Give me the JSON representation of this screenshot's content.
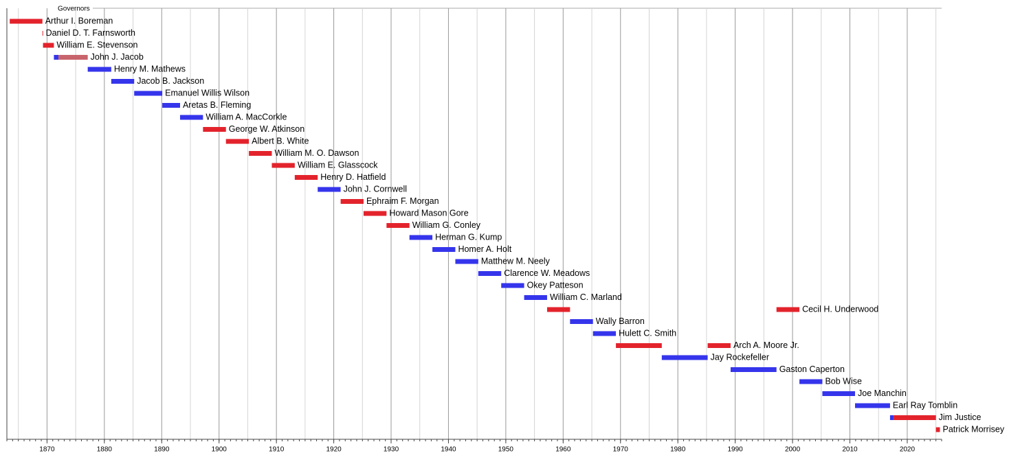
{
  "chart_data": {
    "type": "timeline",
    "title": "Governors",
    "xlim": [
      1863,
      2026
    ],
    "xticks": [
      1870,
      1880,
      1890,
      1900,
      1910,
      1920,
      1930,
      1940,
      1950,
      1960,
      1970,
      1980,
      1990,
      2000,
      2010,
      2020
    ],
    "xminorgrid": [
      1865,
      1875,
      1885,
      1895,
      1905,
      1915,
      1925,
      1935,
      1945,
      1955,
      1965,
      1975,
      1985,
      1995,
      2005,
      2015,
      2025
    ],
    "xminorticks": [
      1863,
      1864,
      1865,
      1866,
      1867,
      1868,
      1869,
      1870,
      1871,
      1872,
      1873,
      1874,
      1875,
      1876,
      1877,
      1878,
      1879,
      1880,
      1881,
      1882,
      1883,
      1884,
      1885,
      1886,
      1887,
      1888,
      1889,
      1890,
      1891,
      1892,
      1893,
      1894,
      1895,
      1896,
      1897,
      1898,
      1899,
      1900,
      1901,
      1902,
      1903,
      1904,
      1905,
      1906,
      1907,
      1908,
      1909,
      1910,
      1911,
      1912,
      1913,
      1914,
      1915,
      1916,
      1917,
      1918,
      1919,
      1920,
      1921,
      1922,
      1923,
      1924,
      1925,
      1926,
      1927,
      1928,
      1929,
      1930,
      1931,
      1932,
      1933,
      1934,
      1935,
      1936,
      1937,
      1938,
      1939,
      1940,
      1941,
      1942,
      1943,
      1944,
      1945,
      1946,
      1947,
      1948,
      1949,
      1950,
      1951,
      1952,
      1953,
      1954,
      1955,
      1956,
      1957,
      1958,
      1959,
      1960,
      1961,
      1962,
      1963,
      1964,
      1965,
      1966,
      1967,
      1968,
      1969,
      1970,
      1971,
      1972,
      1973,
      1974,
      1975,
      1976,
      1977,
      1978,
      1979,
      1980,
      1981,
      1982,
      1983,
      1984,
      1985,
      1986,
      1987,
      1988,
      1989,
      1990,
      1991,
      1992,
      1993,
      1994,
      1995,
      1996,
      1997,
      1998,
      1999,
      2000,
      2001,
      2002,
      2003,
      2004,
      2005,
      2006,
      2007,
      2008,
      2009,
      2010,
      2011,
      2012,
      2013,
      2014,
      2015,
      2016,
      2017,
      2018,
      2019,
      2020,
      2021,
      2022,
      2023,
      2024,
      2025,
      2026
    ],
    "grid": true,
    "rows": [
      {
        "label": "Arthur I. Boreman",
        "terms": [
          {
            "start": 1863.5,
            "end": 1869.2,
            "color": "#e3232c"
          }
        ]
      },
      {
        "label": "Daniel D. T. Farnsworth",
        "terms": [
          {
            "start": 1869.2,
            "end": 1869.3,
            "color": "#e3232c"
          }
        ]
      },
      {
        "label": "William E. Stevenson",
        "terms": [
          {
            "start": 1869.3,
            "end": 1871.2,
            "color": "#e3232c"
          }
        ]
      },
      {
        "label": "John J. Jacob",
        "terms": [
          {
            "start": 1871.2,
            "end": 1872.0,
            "color": "#3535ec"
          },
          {
            "start": 1872.0,
            "end": 1877.1,
            "color": "#c8646c"
          }
        ]
      },
      {
        "label": "Henry M. Mathews",
        "terms": [
          {
            "start": 1877.1,
            "end": 1881.2,
            "color": "#3535ec"
          }
        ]
      },
      {
        "label": "Jacob B. Jackson",
        "terms": [
          {
            "start": 1881.2,
            "end": 1885.2,
            "color": "#3535ec"
          }
        ]
      },
      {
        "label": "Emanuel Willis Wilson",
        "terms": [
          {
            "start": 1885.2,
            "end": 1890.1,
            "color": "#3535ec"
          }
        ]
      },
      {
        "label": "Aretas B. Fleming",
        "terms": [
          {
            "start": 1890.1,
            "end": 1893.2,
            "color": "#3535ec"
          }
        ]
      },
      {
        "label": "William A. MacCorkle",
        "terms": [
          {
            "start": 1893.2,
            "end": 1897.2,
            "color": "#3535ec"
          }
        ]
      },
      {
        "label": "George W. Atkinson",
        "terms": [
          {
            "start": 1897.2,
            "end": 1901.2,
            "color": "#e3232c"
          }
        ]
      },
      {
        "label": "Albert B. White",
        "terms": [
          {
            "start": 1901.2,
            "end": 1905.2,
            "color": "#e3232c"
          }
        ]
      },
      {
        "label": "William M. O. Dawson",
        "terms": [
          {
            "start": 1905.2,
            "end": 1909.2,
            "color": "#e3232c"
          }
        ]
      },
      {
        "label": "William E. Glasscock",
        "terms": [
          {
            "start": 1909.2,
            "end": 1913.2,
            "color": "#e3232c"
          }
        ]
      },
      {
        "label": "Henry D. Hatfield",
        "terms": [
          {
            "start": 1913.2,
            "end": 1917.2,
            "color": "#e3232c"
          }
        ]
      },
      {
        "label": "John J. Cornwell",
        "terms": [
          {
            "start": 1917.2,
            "end": 1921.2,
            "color": "#3535ec"
          }
        ]
      },
      {
        "label": "Ephraim F. Morgan",
        "terms": [
          {
            "start": 1921.2,
            "end": 1925.2,
            "color": "#e3232c"
          }
        ]
      },
      {
        "label": "Howard Mason Gore",
        "terms": [
          {
            "start": 1925.2,
            "end": 1929.2,
            "color": "#e3232c"
          }
        ]
      },
      {
        "label": "William G. Conley",
        "terms": [
          {
            "start": 1929.2,
            "end": 1933.2,
            "color": "#e3232c"
          }
        ]
      },
      {
        "label": "Herman G. Kump",
        "terms": [
          {
            "start": 1933.2,
            "end": 1937.2,
            "color": "#3535ec"
          }
        ]
      },
      {
        "label": "Homer A. Holt",
        "terms": [
          {
            "start": 1937.2,
            "end": 1941.2,
            "color": "#3535ec"
          }
        ]
      },
      {
        "label": "Matthew M. Neely",
        "terms": [
          {
            "start": 1941.2,
            "end": 1945.2,
            "color": "#3535ec"
          }
        ]
      },
      {
        "label": "Clarence W. Meadows",
        "terms": [
          {
            "start": 1945.2,
            "end": 1949.2,
            "color": "#3535ec"
          }
        ]
      },
      {
        "label": "Okey Patteson",
        "terms": [
          {
            "start": 1949.2,
            "end": 1953.2,
            "color": "#3535ec"
          }
        ]
      },
      {
        "label": "William C. Marland",
        "terms": [
          {
            "start": 1953.2,
            "end": 1957.2,
            "color": "#3535ec"
          }
        ]
      },
      {
        "label": "Cecil H. Underwood",
        "terms": [
          {
            "start": 1957.2,
            "end": 1961.2,
            "color": "#e3232c"
          },
          {
            "start": 1997.2,
            "end": 2001.2,
            "color": "#e3232c"
          }
        ]
      },
      {
        "label": "Wally Barron",
        "terms": [
          {
            "start": 1961.2,
            "end": 1965.2,
            "color": "#3535ec"
          }
        ]
      },
      {
        "label": "Hulett C. Smith",
        "terms": [
          {
            "start": 1965.2,
            "end": 1969.2,
            "color": "#3535ec"
          }
        ]
      },
      {
        "label": "Arch A. Moore Jr.",
        "terms": [
          {
            "start": 1969.2,
            "end": 1977.2,
            "color": "#e3232c"
          },
          {
            "start": 1985.2,
            "end": 1989.2,
            "color": "#e3232c"
          }
        ]
      },
      {
        "label": "Jay Rockefeller",
        "terms": [
          {
            "start": 1977.2,
            "end": 1985.2,
            "color": "#3535ec"
          }
        ]
      },
      {
        "label": "Gaston Caperton",
        "terms": [
          {
            "start": 1989.2,
            "end": 1997.2,
            "color": "#3535ec"
          }
        ]
      },
      {
        "label": "Bob Wise",
        "terms": [
          {
            "start": 2001.2,
            "end": 2005.2,
            "color": "#3535ec"
          }
        ]
      },
      {
        "label": "Joe Manchin",
        "terms": [
          {
            "start": 2005.2,
            "end": 2010.9,
            "color": "#3535ec"
          }
        ]
      },
      {
        "label": "Earl Ray Tomblin",
        "terms": [
          {
            "start": 2010.9,
            "end": 2017.0,
            "color": "#3535ec"
          }
        ]
      },
      {
        "label": "Jim Justice",
        "terms": [
          {
            "start": 2017.0,
            "end": 2017.6,
            "color": "#3535ec"
          },
          {
            "start": 2017.6,
            "end": 2025.0,
            "color": "#e3232c"
          }
        ]
      },
      {
        "label": "Patrick Morrisey",
        "terms": [
          {
            "start": 2025.0,
            "end": 2025.7,
            "color": "#e3232c"
          }
        ]
      }
    ]
  }
}
